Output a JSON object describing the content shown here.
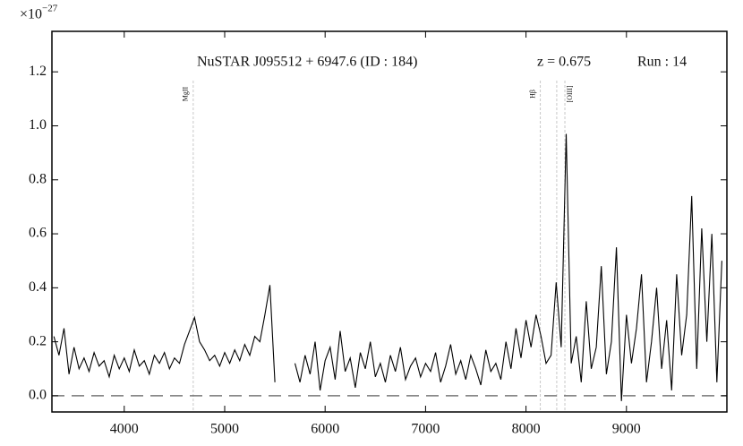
{
  "chart_data": {
    "type": "line",
    "y_offset_base": "×10",
    "y_offset_exponent": "−27",
    "annotations": [
      "NuSTAR J095512 + 6947.6 (ID : 184)",
      "z = 0.675",
      "Run : 14"
    ],
    "lines": [
      {
        "x": 4687,
        "label": "MgII"
      },
      {
        "x": 8143,
        "label": "Hβ"
      },
      {
        "x": 8306,
        "label": null
      },
      {
        "x": 8387,
        "label": "[OIII]"
      }
    ],
    "hline": 0,
    "xlim": [
      3280,
      10000
    ],
    "ylim": [
      -0.06,
      1.35
    ],
    "xticks": [
      4000,
      5000,
      6000,
      7000,
      8000,
      9000
    ],
    "yticks": [
      {
        "value": 0,
        "label": "0.0"
      },
      0.2,
      0.4,
      0.6,
      0.8,
      {
        "value": 1,
        "label": "1.0"
      },
      1.2
    ],
    "x": [
      3300,
      3350,
      3400,
      3450,
      3500,
      3550,
      3600,
      3650,
      3700,
      3750,
      3800,
      3850,
      3900,
      3950,
      4000,
      4050,
      4100,
      4150,
      4200,
      4250,
      4300,
      4350,
      4400,
      4450,
      4500,
      4550,
      4600,
      4650,
      4700,
      4750,
      4800,
      4850,
      4900,
      4950,
      5000,
      5050,
      5100,
      5150,
      5200,
      5250,
      5300,
      5350,
      5400,
      5450,
      5500,
      5550,
      5600,
      5650,
      5700,
      5750,
      5800,
      5850,
      5900,
      5950,
      6000,
      6050,
      6100,
      6150,
      6200,
      6250,
      6300,
      6350,
      6400,
      6450,
      6500,
      6550,
      6600,
      6650,
      6700,
      6750,
      6800,
      6850,
      6900,
      6950,
      7000,
      7050,
      7100,
      7150,
      7200,
      7250,
      7300,
      7350,
      7400,
      7450,
      7500,
      7550,
      7600,
      7650,
      7700,
      7750,
      7800,
      7850,
      7900,
      7950,
      8000,
      8050,
      8100,
      8150,
      8200,
      8250,
      8300,
      8350,
      8400,
      8450,
      8500,
      8550,
      8600,
      8650,
      8700,
      8750,
      8800,
      8850,
      8900,
      8950,
      9000,
      9050,
      9100,
      9150,
      9200,
      9250,
      9300,
      9350,
      9400,
      9450,
      9500,
      9550,
      9600,
      9650,
      9700,
      9750,
      9800,
      9850,
      9900,
      9950
    ],
    "series": [
      {
        "color": "#000000",
        "values": [
          0.22,
          0.15,
          0.25,
          0.08,
          0.18,
          0.1,
          0.14,
          0.09,
          0.16,
          0.11,
          0.13,
          0.07,
          0.15,
          0.1,
          0.14,
          0.09,
          0.17,
          0.11,
          0.13,
          0.08,
          0.15,
          0.12,
          0.16,
          0.1,
          0.14,
          0.12,
          0.19,
          0.24,
          0.29,
          0.2,
          0.17,
          0.13,
          0.15,
          0.11,
          0.16,
          0.12,
          0.17,
          0.13,
          0.19,
          0.15,
          0.22,
          0.2,
          0.3,
          0.41,
          0.05,
          null,
          null,
          null,
          0.12,
          0.05,
          0.15,
          0.08,
          0.2,
          0.02,
          0.13,
          0.18,
          0.06,
          0.24,
          0.09,
          0.14,
          0.03,
          0.16,
          0.1,
          0.2,
          0.07,
          0.12,
          0.05,
          0.15,
          0.09,
          0.18,
          0.06,
          0.11,
          0.14,
          0.07,
          0.12,
          0.09,
          0.16,
          0.05,
          0.11,
          0.19,
          0.08,
          0.13,
          0.06,
          0.15,
          0.1,
          0.04,
          0.17,
          0.09,
          0.12,
          0.06,
          0.2,
          0.1,
          0.25,
          0.14,
          0.28,
          0.18,
          0.3,
          0.22,
          0.12,
          0.15,
          0.42,
          0.18,
          0.97,
          0.12,
          0.22,
          0.05,
          0.35,
          0.1,
          0.18,
          0.48,
          0.08,
          0.2,
          0.55,
          -0.02,
          0.3,
          0.12,
          0.25,
          0.45,
          0.05,
          0.2,
          0.4,
          0.1,
          0.28,
          0.02,
          0.45,
          0.15,
          0.3,
          0.74,
          0.1,
          0.62,
          0.2,
          0.6,
          0.05,
          0.5
        ]
      }
    ]
  }
}
